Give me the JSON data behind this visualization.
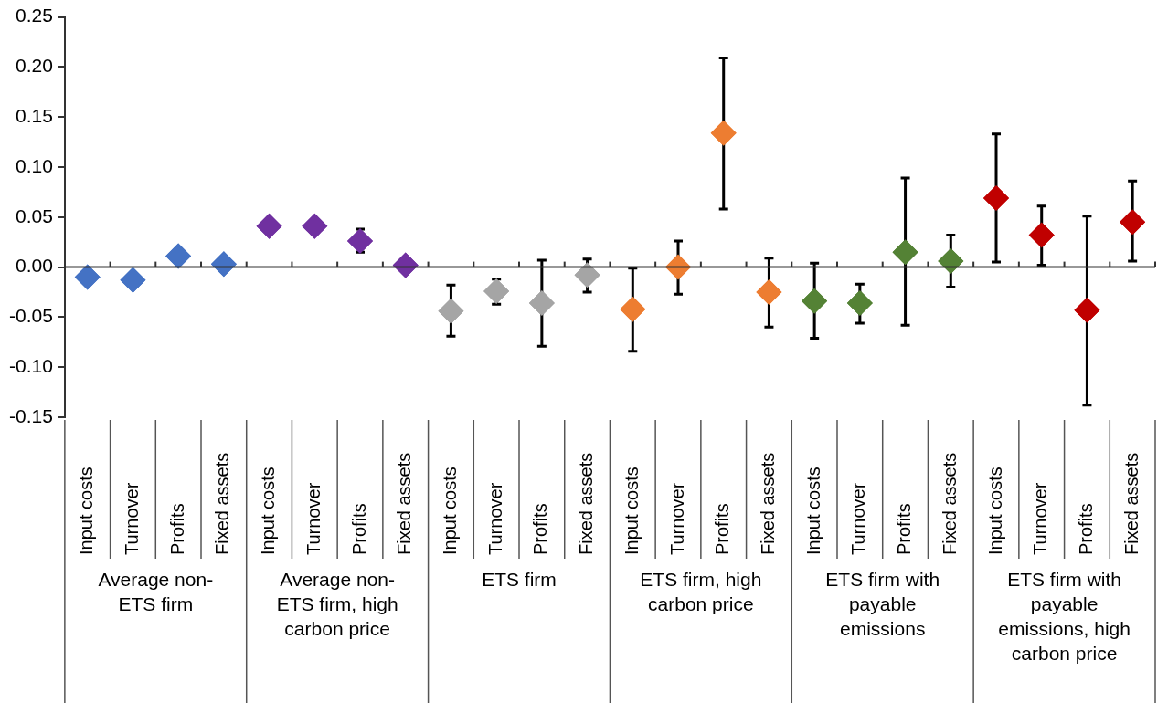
{
  "chart_data": {
    "type": "scatter",
    "marker": "diamond",
    "categories": [
      "Input costs",
      "Turnover",
      "Profits",
      "Fixed assets",
      "Input costs",
      "Turnover",
      "Profits",
      "Fixed assets",
      "Input costs",
      "Turnover",
      "Profits",
      "Fixed assets",
      "Input costs",
      "Turnover",
      "Profits",
      "Fixed assets",
      "Input costs",
      "Turnover",
      "Profits",
      "Fixed assets",
      "Input costs",
      "Turnover",
      "Profits",
      "Fixed assets"
    ],
    "annotations": [
      "Average non-ETS firm",
      "Average non-ETS firm, high carbon price",
      "ETS firm",
      "ETS firm, high carbon price",
      "ETS firm with payable emissions",
      "ETS firm with payable emissions, high carbon price"
    ],
    "ylim": [
      -0.15,
      0.25
    ],
    "yticks": [
      {
        "value": -0.15,
        "label": "-0.15"
      },
      {
        "value": -0.1,
        "label": "-0.10"
      },
      {
        "value": -0.05,
        "label": "-0.05"
      },
      {
        "value": 0,
        "label": "0.00"
      },
      {
        "value": 0.05,
        "label": "0.05"
      },
      {
        "value": 0.1,
        "label": "0.10"
      },
      {
        "value": 0.15,
        "label": "0.15"
      },
      {
        "value": 0.2,
        "label": "0.20"
      },
      {
        "value": 0.25,
        "label": "0.25"
      }
    ],
    "series": [
      {
        "color": "#4472c4",
        "values": [
          -0.01,
          -0.013,
          0.011,
          0.003,
          null,
          null,
          null,
          null,
          null,
          null,
          null,
          null,
          null,
          null,
          null,
          null,
          null,
          null,
          null,
          null,
          null,
          null,
          null,
          null
        ],
        "errors": [
          null,
          null,
          null,
          null,
          null,
          null,
          null,
          null,
          null,
          null,
          null,
          null,
          null,
          null,
          null,
          null,
          null,
          null,
          null,
          null,
          null,
          null,
          null,
          null
        ]
      },
      {
        "color": "#7030a0",
        "values": [
          null,
          null,
          null,
          null,
          0.041,
          0.041,
          0.026,
          0.002,
          null,
          null,
          null,
          null,
          null,
          null,
          null,
          null,
          null,
          null,
          null,
          null,
          null,
          null,
          null,
          null
        ],
        "errors": [
          null,
          null,
          null,
          null,
          null,
          null,
          [
            0.015,
            0.038
          ],
          null,
          null,
          null,
          null,
          null,
          null,
          null,
          null,
          null,
          null,
          null,
          null,
          null,
          null,
          null,
          null,
          null
        ]
      },
      {
        "color": "#a5a5a5",
        "values": [
          null,
          null,
          null,
          null,
          null,
          null,
          null,
          null,
          -0.044,
          -0.024,
          -0.036,
          -0.008,
          null,
          null,
          null,
          null,
          null,
          null,
          null,
          null,
          null,
          null,
          null,
          null
        ],
        "errors": [
          null,
          null,
          null,
          null,
          null,
          null,
          null,
          null,
          [
            -0.069,
            -0.018
          ],
          [
            -0.037,
            -0.012
          ],
          [
            -0.079,
            0.007
          ],
          [
            -0.025,
            0.008
          ],
          null,
          null,
          null,
          null,
          null,
          null,
          null,
          null,
          null,
          null,
          null,
          null
        ]
      },
      {
        "color": "#ed7d31",
        "values": [
          null,
          null,
          null,
          null,
          null,
          null,
          null,
          null,
          null,
          null,
          null,
          null,
          -0.042,
          0.0,
          0.134,
          -0.025,
          null,
          null,
          null,
          null,
          null,
          null,
          null,
          null
        ],
        "errors": [
          null,
          null,
          null,
          null,
          null,
          null,
          null,
          null,
          null,
          null,
          null,
          null,
          [
            -0.084,
            -0.001
          ],
          [
            -0.027,
            0.026
          ],
          [
            0.058,
            0.209
          ],
          [
            -0.06,
            0.009
          ],
          null,
          null,
          null,
          null,
          null,
          null,
          null,
          null
        ]
      },
      {
        "color": "#548235",
        "values": [
          null,
          null,
          null,
          null,
          null,
          null,
          null,
          null,
          null,
          null,
          null,
          null,
          null,
          null,
          null,
          null,
          -0.034,
          -0.036,
          0.015,
          0.006,
          null,
          null,
          null,
          null
        ],
        "errors": [
          null,
          null,
          null,
          null,
          null,
          null,
          null,
          null,
          null,
          null,
          null,
          null,
          null,
          null,
          null,
          null,
          [
            -0.071,
            0.004
          ],
          [
            -0.056,
            -0.017
          ],
          [
            -0.058,
            0.089
          ],
          [
            -0.02,
            0.032
          ],
          null,
          null,
          null,
          null
        ]
      },
      {
        "color": "#c00000",
        "values": [
          null,
          null,
          null,
          null,
          null,
          null,
          null,
          null,
          null,
          null,
          null,
          null,
          null,
          null,
          null,
          null,
          null,
          null,
          null,
          null,
          0.069,
          0.032,
          -0.043,
          0.045
        ],
        "errors": [
          null,
          null,
          null,
          null,
          null,
          null,
          null,
          null,
          null,
          null,
          null,
          null,
          null,
          null,
          null,
          null,
          null,
          null,
          null,
          null,
          [
            0.005,
            0.133
          ],
          [
            0.002,
            0.061
          ],
          [
            -0.138,
            0.051
          ],
          [
            0.006,
            0.086
          ]
        ]
      }
    ]
  }
}
